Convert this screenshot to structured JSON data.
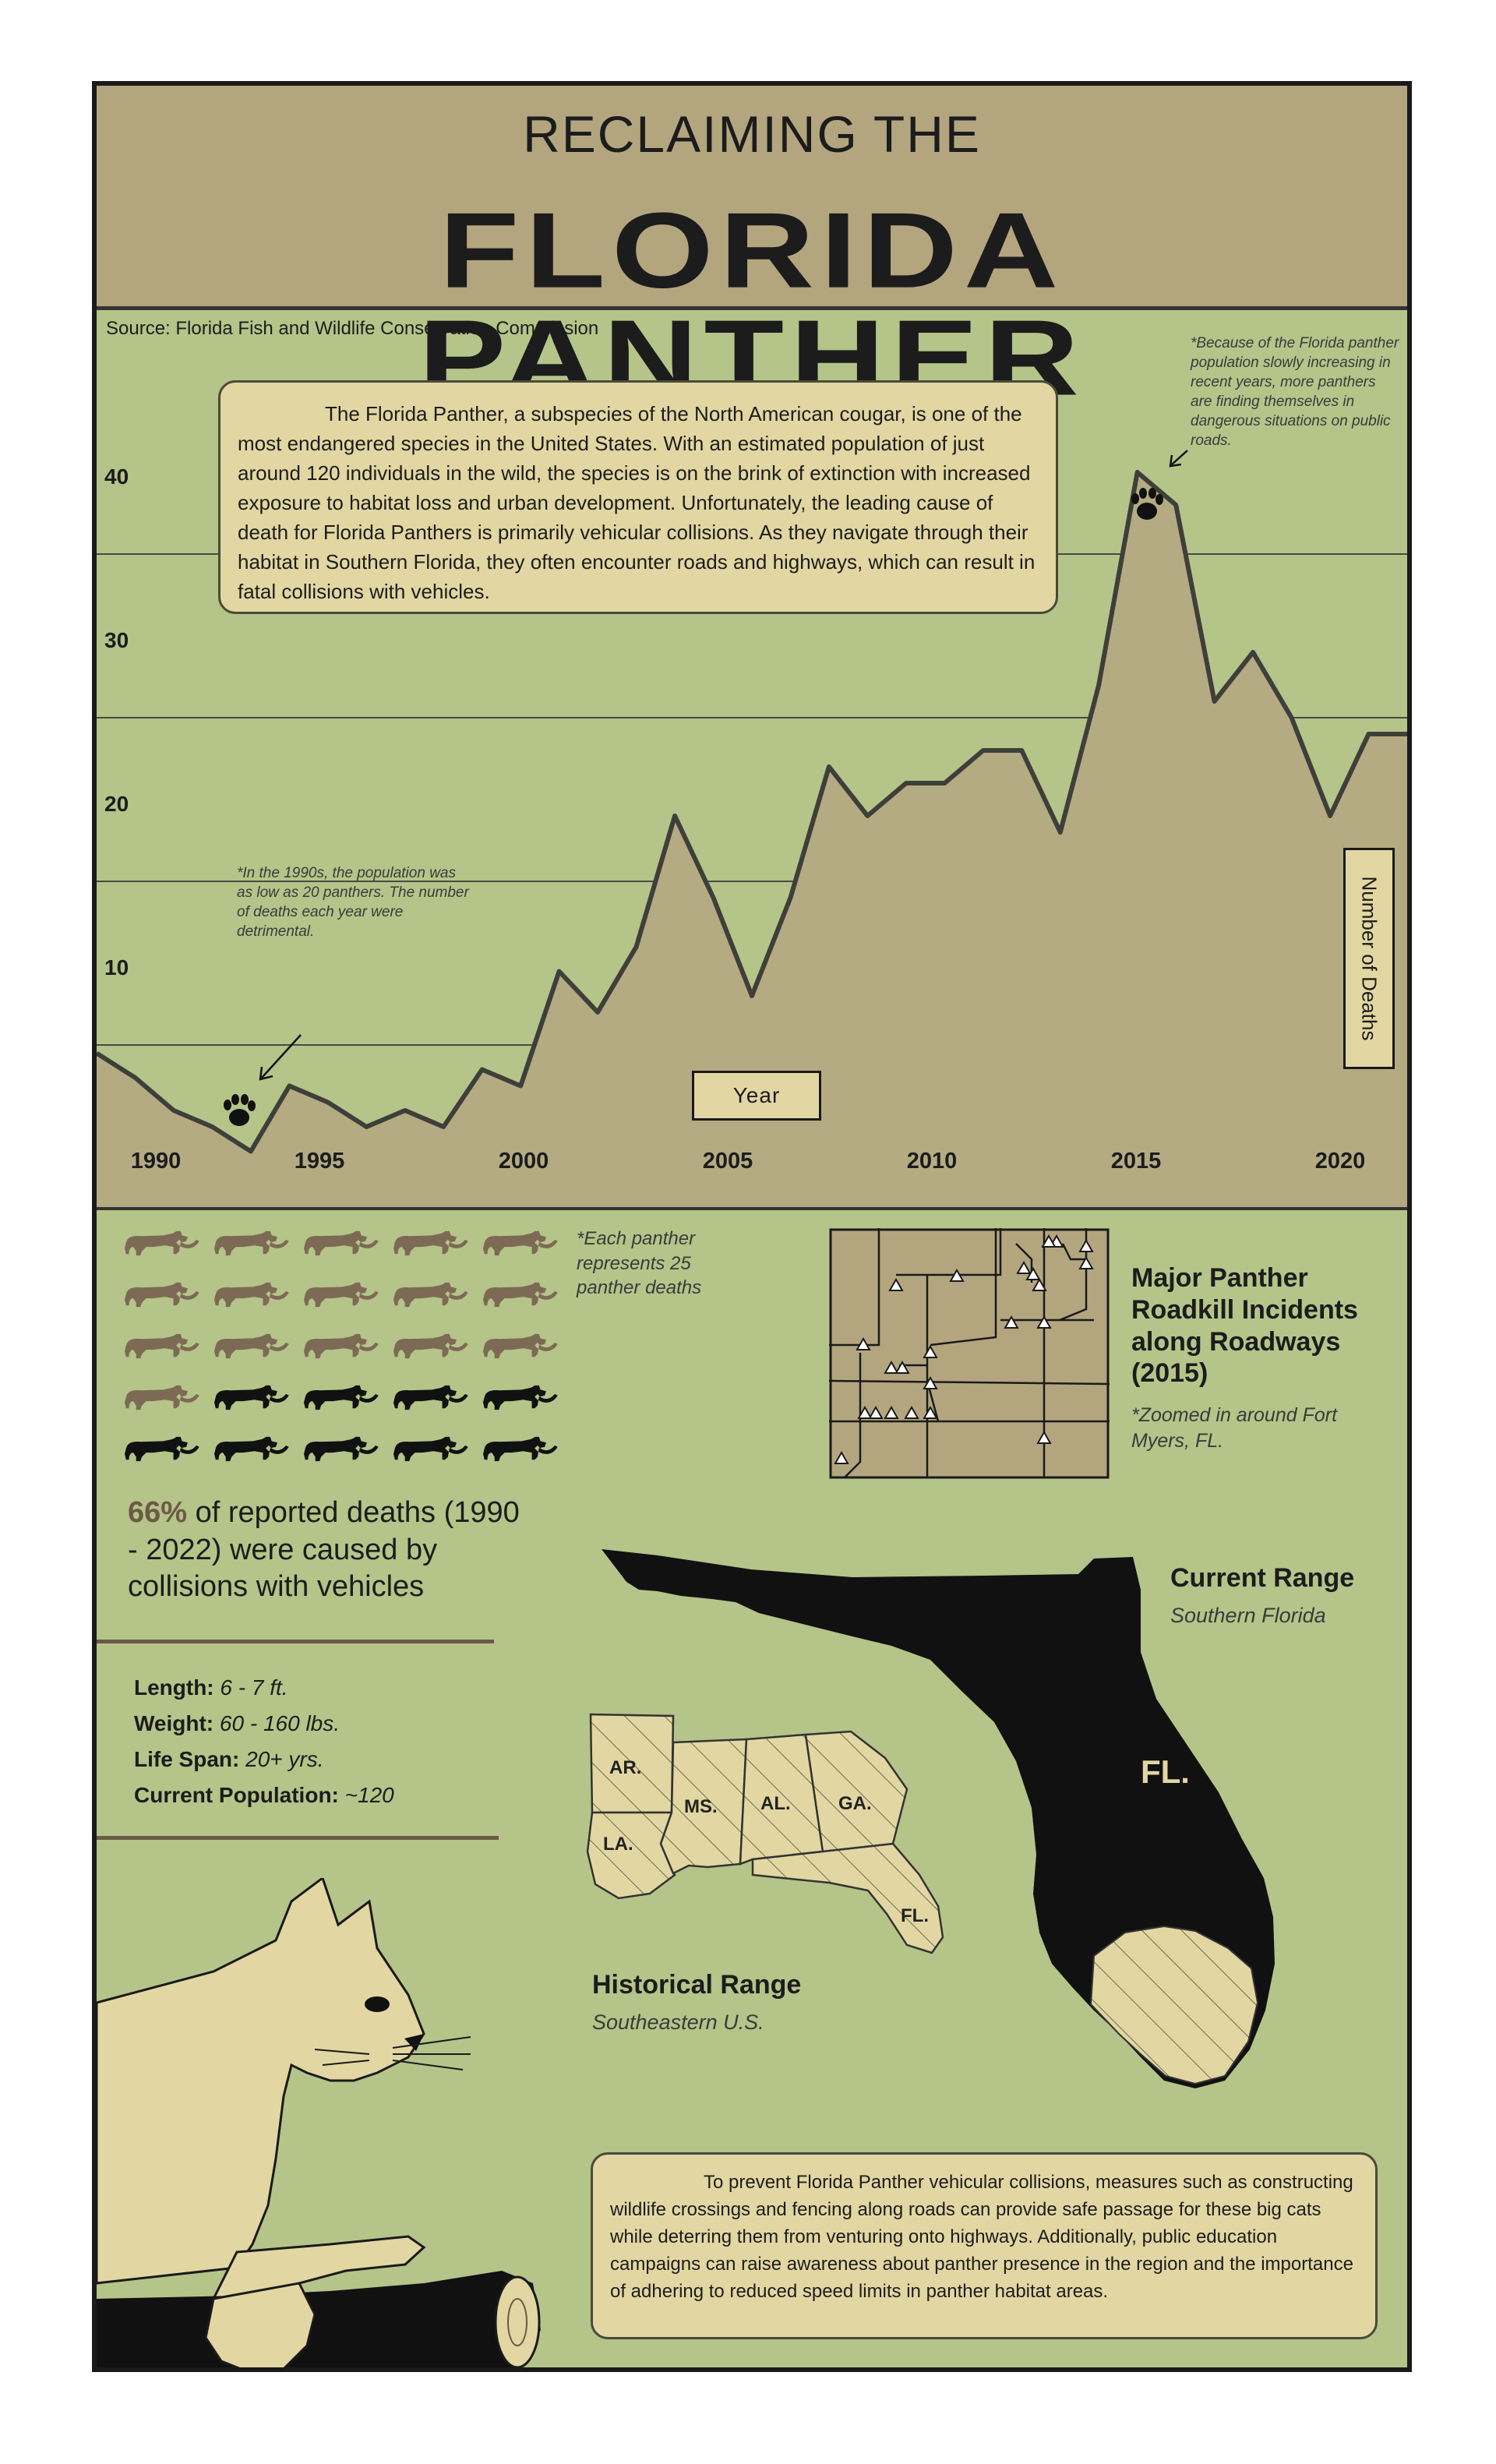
{
  "header": {
    "line1": "RECLAIMING THE",
    "line2": "FLORIDA PANTHER"
  },
  "source": "Source: Florida Fish and Wildlife Conservation Commission",
  "intro_text": "The Florida Panther, a subspecies of the North American cougar, is one of the most endangered species in the United States. With an estimated population of just around 120 individuals in the wild, the species is on the brink of extinction with increased exposure to habitat loss and urban development. Unfortunately, the leading cause of death for Florida Panthers is primarily vehicular collisions. As they navigate through their habitat in Southern Florida, they often encounter roads and highways, which can result in fatal collisions with vehicles.",
  "note_2015": "*Because of the Florida panther population slowly increasing in recent years, more panthers are finding themselves in dangerous situations on public roads.",
  "note_1990s": "*In the 1990s, the population was as low as 20 panthers. The number of deaths each year were detrimental.",
  "chart_data": {
    "type": "area",
    "xlabel": "Year",
    "ylabel": "Number of Deaths",
    "xlim": [
      1988,
      2023
    ],
    "ylim": [
      0,
      50
    ],
    "grid": true,
    "yticks": [
      "10",
      "20",
      "30",
      "40"
    ],
    "xticks": [
      "1990",
      "1995",
      "2000",
      "2005",
      "2010",
      "2015",
      "2020"
    ],
    "x": [
      1988,
      1989,
      1990,
      1991,
      1992,
      1993,
      1994,
      1995,
      1996,
      1997,
      1998,
      1999,
      2000,
      2001,
      2002,
      2003,
      2004,
      2005,
      2006,
      2007,
      2008,
      2009,
      2010,
      2011,
      2012,
      2013,
      2014,
      2015,
      2016,
      2017,
      2018,
      2019,
      2020,
      2021,
      2022
    ],
    "values": [
      9.5,
      8,
      6,
      5,
      3.5,
      7.5,
      6.5,
      5,
      6,
      5,
      8.5,
      7.5,
      14.5,
      12,
      16,
      24,
      19,
      13,
      19,
      27,
      24,
      26,
      26,
      28,
      28,
      23,
      32,
      45,
      43,
      31,
      34,
      30,
      24,
      29,
      29
    ],
    "colors": {
      "fill": "#b4ab83",
      "line": "#3f3f3a"
    }
  },
  "icon_rows_note": "*Each panther represents 25 panther deaths",
  "icon_counts": {
    "total": 25,
    "brown": 16,
    "colors": {
      "brown": "#7d6a55",
      "black": "#111111"
    }
  },
  "stat": {
    "pct": "66%",
    "rest": " of reported deaths (1990 - 2022) were caused by collisions with vehicles"
  },
  "specs": {
    "length_label": "Length:",
    "length": "6 - 7 ft.",
    "weight_label": "Weight:",
    "weight": "60 - 160 lbs.",
    "life_label": "Life Span:",
    "life": "20+ yrs.",
    "pop_label": "Current Population:",
    "pop": "~120"
  },
  "roadkill": {
    "title": "Major Panther Roadkill Incidents along Roadways (2015)",
    "note": "*Zoomed in around Fort Myers, FL."
  },
  "current_range": {
    "title": "Current Range",
    "sub": "Southern Florida",
    "label": "FL."
  },
  "historical_range": {
    "title": "Historical Range",
    "sub": "Southeastern U.S.",
    "states": [
      "AR.",
      "LA.",
      "MS.",
      "AL.",
      "GA.",
      "FL."
    ]
  },
  "outro_text": "To prevent Florida Panther vehicular collisions, measures such as constructing wildlife crossings and fencing along roads can provide safe passage for these big cats while deterring them from venturing onto highways. Additionally, public education campaigns can raise awareness about panther presence in the region and the importance of adhering to reduced speed limits in panther habitat areas."
}
